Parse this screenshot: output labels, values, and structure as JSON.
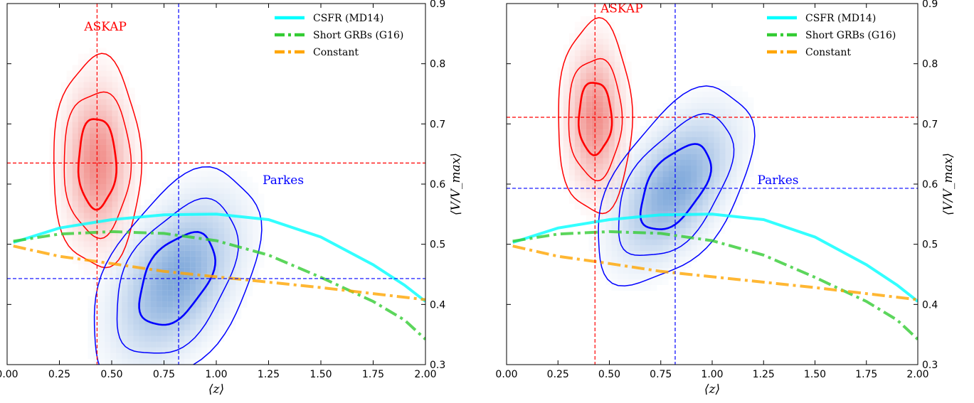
{
  "chart_data": [
    {
      "type": "line",
      "panel": "left",
      "xlabel": "⟨z⟩",
      "ylabel": "⟨V/V_max⟩",
      "xlim": [
        0.0,
        2.0
      ],
      "ylim": [
        0.3,
        0.9
      ],
      "xticks": [
        "0.00",
        "0.25",
        "0.50",
        "0.75",
        "1.00",
        "1.25",
        "1.50",
        "1.75",
        "2.00"
      ],
      "yticks": [
        "0.3",
        "0.4",
        "0.5",
        "0.6",
        "0.7",
        "0.8",
        "0.9"
      ],
      "legend_position": "top-right",
      "series": [
        {
          "name": "CSFR (MD14)",
          "color": "#00ffff",
          "style": "solid",
          "x": [
            0.03,
            0.25,
            0.5,
            0.75,
            1.0,
            1.25,
            1.5,
            1.75,
            1.9,
            2.0
          ],
          "y": [
            0.503,
            0.527,
            0.541,
            0.549,
            0.55,
            0.541,
            0.512,
            0.466,
            0.432,
            0.405
          ]
        },
        {
          "name": "Short GRBs (G16)",
          "color": "#33cc33",
          "style": "dashdot",
          "x": [
            0.03,
            0.25,
            0.5,
            0.75,
            1.0,
            1.25,
            1.5,
            1.75,
            1.9,
            2.0
          ],
          "y": [
            0.505,
            0.517,
            0.521,
            0.518,
            0.506,
            0.482,
            0.445,
            0.405,
            0.374,
            0.342
          ]
        },
        {
          "name": "Constant",
          "color": "#ffa500",
          "style": "dashdot",
          "x": [
            0.03,
            0.25,
            0.5,
            0.75,
            1.0,
            1.25,
            1.5,
            1.75,
            2.0
          ],
          "y": [
            0.497,
            0.48,
            0.468,
            0.455,
            0.446,
            0.437,
            0.428,
            0.418,
            0.408
          ]
        }
      ],
      "reference_lines": [
        {
          "label": "ASKAP",
          "color": "#ff0000",
          "x": 0.43,
          "y": 0.635
        },
        {
          "label": "Parkes",
          "color": "#0000ff",
          "x": 0.82,
          "y": 0.443
        }
      ],
      "contours": [
        {
          "label": "ASKAP",
          "color": "#ff0000",
          "center": [
            0.43,
            0.635
          ],
          "widths": [
            0.09,
            0.16,
            0.21
          ],
          "heights": [
            0.075,
            0.12,
            0.175
          ],
          "tilt": 0.0
        },
        {
          "label": "Parkes",
          "color": "#0000ff",
          "center": [
            0.81,
            0.443
          ],
          "widths": [
            0.18,
            0.29,
            0.4
          ],
          "heights": [
            0.068,
            0.115,
            0.16
          ],
          "tilt": 0.09
        }
      ],
      "annotations": [
        {
          "text": "ASKAP",
          "color": "#ff0000",
          "x": 0.47,
          "y": 0.855
        },
        {
          "text": "Parkes",
          "color": "#0000ff",
          "x": 1.32,
          "y": 0.6
        }
      ]
    },
    {
      "type": "line",
      "panel": "right",
      "xlabel": "⟨z⟩",
      "ylabel": "⟨V/V_max⟩",
      "xlim": [
        0.0,
        2.0
      ],
      "ylim": [
        0.3,
        0.9
      ],
      "xticks": [
        "0.00",
        "0.25",
        "0.50",
        "0.75",
        "1.00",
        "1.25",
        "1.50",
        "1.75",
        "2.00"
      ],
      "yticks": [
        "0.3",
        "0.4",
        "0.5",
        "0.6",
        "0.7",
        "0.8",
        "0.9"
      ],
      "legend_position": "top-right",
      "series": [
        {
          "name": "CSFR (MD14)",
          "color": "#00ffff",
          "style": "solid",
          "x": [
            0.03,
            0.25,
            0.5,
            0.75,
            1.0,
            1.25,
            1.5,
            1.75,
            1.9,
            2.0
          ],
          "y": [
            0.503,
            0.527,
            0.541,
            0.549,
            0.55,
            0.541,
            0.512,
            0.466,
            0.432,
            0.405
          ]
        },
        {
          "name": "Short GRBs (G16)",
          "color": "#33cc33",
          "style": "dashdot",
          "x": [
            0.03,
            0.25,
            0.5,
            0.75,
            1.0,
            1.25,
            1.5,
            1.75,
            1.9,
            2.0
          ],
          "y": [
            0.505,
            0.517,
            0.521,
            0.518,
            0.506,
            0.482,
            0.445,
            0.405,
            0.374,
            0.342
          ]
        },
        {
          "name": "Constant",
          "color": "#ffa500",
          "style": "dashdot",
          "x": [
            0.03,
            0.25,
            0.5,
            0.75,
            1.0,
            1.25,
            1.5,
            1.75,
            2.0
          ],
          "y": [
            0.497,
            0.48,
            0.468,
            0.455,
            0.446,
            0.437,
            0.428,
            0.418,
            0.408
          ]
        }
      ],
      "reference_lines": [
        {
          "label": "ASKAP",
          "color": "#ff0000",
          "x": 0.43,
          "y": 0.711
        },
        {
          "label": "Parkes",
          "color": "#0000ff",
          "x": 0.82,
          "y": 0.593
        }
      ],
      "contours": [
        {
          "label": "ASKAP",
          "color": "#ff0000",
          "center": [
            0.43,
            0.71
          ],
          "widths": [
            0.08,
            0.13,
            0.18
          ],
          "heights": [
            0.06,
            0.1,
            0.16
          ],
          "tilt": 0.0
        },
        {
          "label": "Parkes",
          "color": "#0000ff",
          "center": [
            0.82,
            0.595
          ],
          "widths": [
            0.17,
            0.28,
            0.38
          ],
          "heights": [
            0.06,
            0.1,
            0.14
          ],
          "tilt": 0.1
        }
      ],
      "annotations": [
        {
          "text": "ASKAP",
          "color": "#ff0000",
          "x": 0.56,
          "y": 0.885
        },
        {
          "text": "Parkes",
          "color": "#0000ff",
          "x": 1.32,
          "y": 0.6
        }
      ]
    }
  ]
}
